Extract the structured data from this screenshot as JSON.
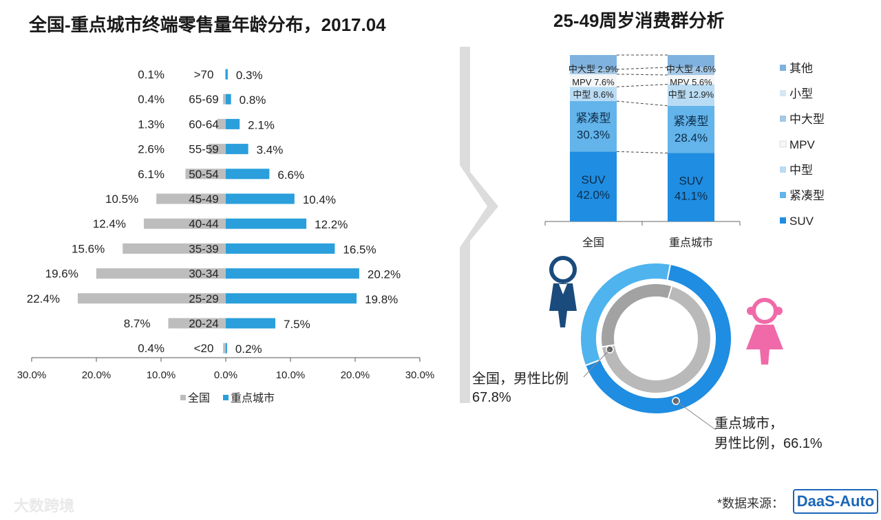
{
  "titles": {
    "left": "全国-重点城市终端零售量年龄分布，2017.04",
    "right": "25-49周岁消费群分析"
  },
  "colors": {
    "national": "#bdbdbd",
    "key_cities": "#2a9fdc",
    "stack": {
      "SUV": "#1f8de1",
      "紧凑型": "#62b4ea",
      "中型": "#b9dcf4",
      "MPV": "#f4f6f8",
      "中大型": "#a4c8e6",
      "小型": "#d5e6f4",
      "其他": "#7fb2de"
    },
    "donut_outer": "#1f8de1",
    "donut_outer_rest": "#4fb3ee",
    "donut_inner": "#b9b9b9",
    "donut_inner_rest": "#a2a2a2"
  },
  "chart_data": [
    {
      "type": "bar",
      "orientation": "horizontal-diverging",
      "categories": [
        ">70",
        "65-69",
        "60-64",
        "55-59",
        "50-54",
        "45-49",
        "40-44",
        "35-39",
        "30-34",
        "25-29",
        "20-24",
        "<20"
      ],
      "series": [
        {
          "name": "全国",
          "values": [
            0.1,
            0.4,
            1.3,
            2.6,
            6.1,
            10.5,
            12.4,
            15.6,
            19.6,
            22.4,
            8.7,
            0.4
          ],
          "labels": [
            "0.1%",
            "0.4%",
            "1.3%",
            "2.6%",
            "6.1%",
            "10.5%",
            "12.4%",
            "15.6%",
            "19.6%",
            "22.4%",
            "8.7%",
            "0.4%"
          ]
        },
        {
          "name": "重点城市",
          "values": [
            0.3,
            0.8,
            2.1,
            3.4,
            6.6,
            10.4,
            12.2,
            16.5,
            20.2,
            19.8,
            7.5,
            0.2
          ],
          "labels": [
            "0.3%",
            "0.8%",
            "2.1%",
            "3.4%",
            "6.6%",
            "10.4%",
            "12.2%",
            "16.5%",
            "20.2%",
            "19.8%",
            "7.5%",
            "0.2%"
          ]
        }
      ],
      "xlim": [
        -30,
        30
      ],
      "x_ticks": [
        "30.0%",
        "20.0%",
        "10.0%",
        "0.0%",
        "10.0%",
        "20.0%",
        "30.0%"
      ],
      "legend": [
        "全国",
        "重点城市"
      ],
      "legend_position": "bottom"
    },
    {
      "type": "bar",
      "orientation": "vertical-stacked-100",
      "categories": [
        "全国",
        "重点城市"
      ],
      "segments": [
        "SUV",
        "紧凑型",
        "中型",
        "MPV",
        "中大型",
        "小型",
        "其他"
      ],
      "values": {
        "全国": {
          "SUV": 42.0,
          "紧凑型": 30.3,
          "中型": 8.6,
          "MPV": 7.6,
          "中大型": 2.9
        },
        "重点城市": {
          "SUV": 41.1,
          "紧凑型": 28.4,
          "中型": 12.9,
          "MPV": 5.6,
          "中大型": 4.6
        }
      },
      "bar_labels": {
        "全国": {
          "SUV": [
            "SUV",
            "42.0%"
          ],
          "紧凑型": [
            "紧凑型",
            "30.3%"
          ],
          "中型": "中型 8.6%",
          "MPV": "MPV 7.6%",
          "中大型": "中大型 2.9%"
        },
        "重点城市": {
          "SUV": [
            "SUV",
            "41.1%"
          ],
          "紧凑型": [
            "紧凑型",
            "28.4%"
          ],
          "中型": "中型 12.9%",
          "MPV": "MPV 5.6%",
          "中大型": "中大型 4.6%"
        }
      },
      "legend": [
        "其他",
        "小型",
        "中大型",
        "MPV",
        "中型",
        "紧凑型",
        "SUV"
      ],
      "legend_position": "right"
    },
    {
      "type": "pie",
      "variant": "nested-donut",
      "rings": [
        {
          "name": "重点城市",
          "value": 66.1,
          "label": [
            "重点城市，",
            "男性比例，66.1%"
          ]
        },
        {
          "name": "全国",
          "value": 67.8,
          "label": [
            "全国，男性比例",
            "67.8%"
          ]
        }
      ],
      "icons": [
        "male-figure-icon",
        "female-figure-icon"
      ]
    }
  ],
  "footer": {
    "watermark": "大数跨境",
    "source_label": "*数据来源：",
    "logo_text": "DaaS-Auto"
  }
}
